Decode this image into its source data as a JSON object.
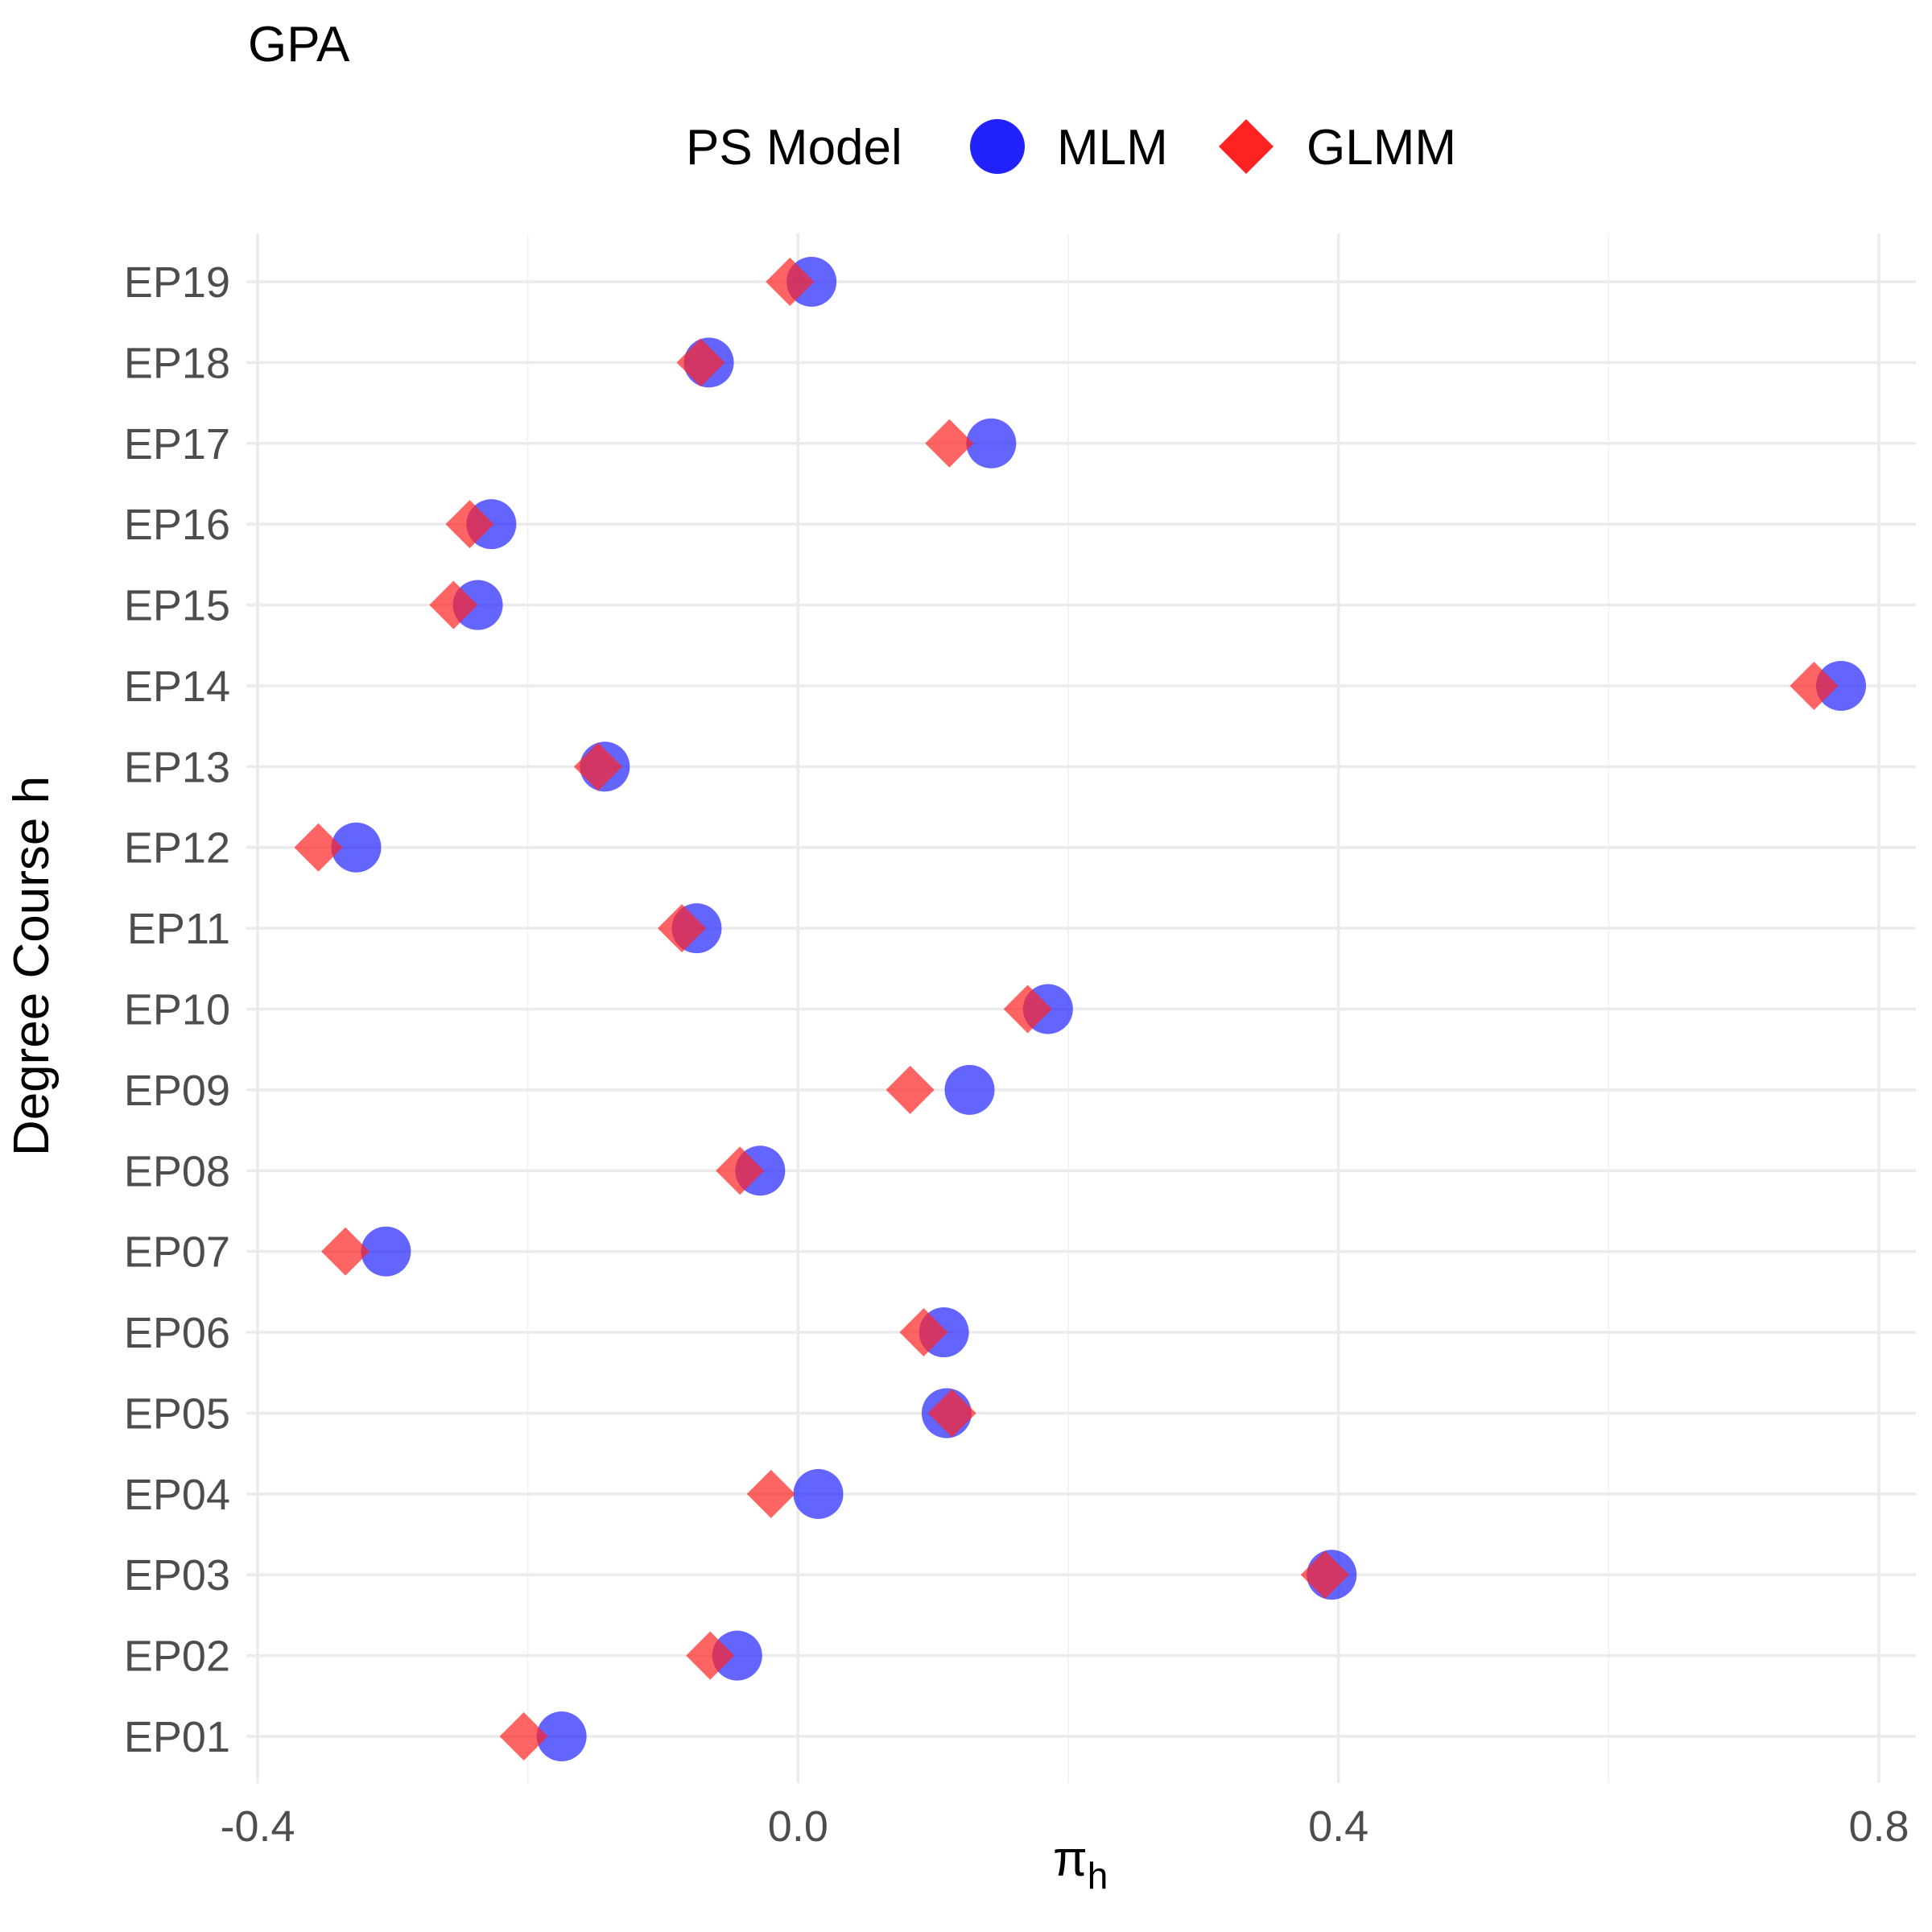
{
  "chart_data": {
    "type": "scatter",
    "title": "GPA",
    "xlabel": "π",
    "xlabel_sub": "h",
    "ylabel": "Degree Course h",
    "xlim": [
      -0.4,
      0.8
    ],
    "x_ticks": [
      -0.4,
      0.0,
      0.4,
      0.8
    ],
    "x_tick_labels": [
      "-0.4",
      "0.0",
      "0.4",
      "0.8"
    ],
    "x_minor_ticks": [
      -0.2,
      0.2,
      0.6
    ],
    "grid": true,
    "legend": {
      "title": "PS Model",
      "position": "top"
    },
    "categories": [
      "EP01",
      "EP02",
      "EP03",
      "EP04",
      "EP05",
      "EP06",
      "EP07",
      "EP08",
      "EP09",
      "EP10",
      "EP11",
      "EP12",
      "EP13",
      "EP14",
      "EP15",
      "EP16",
      "EP17",
      "EP18",
      "EP19"
    ],
    "series": [
      {
        "name": "MLM",
        "marker": "circle",
        "color": "#2222ff",
        "values": [
          -0.175,
          -0.045,
          0.395,
          0.015,
          0.11,
          0.108,
          -0.305,
          -0.028,
          0.127,
          0.185,
          -0.075,
          -0.327,
          -0.143,
          0.772,
          -0.237,
          -0.227,
          0.143,
          -0.066,
          0.01
        ]
      },
      {
        "name": "GLMM",
        "marker": "diamond",
        "color": "#ff2222",
        "values": [
          -0.203,
          -0.065,
          0.39,
          -0.02,
          0.114,
          0.093,
          -0.335,
          -0.043,
          0.083,
          0.17,
          -0.086,
          -0.355,
          -0.148,
          0.752,
          -0.255,
          -0.243,
          0.112,
          -0.072,
          -0.006
        ]
      }
    ]
  }
}
